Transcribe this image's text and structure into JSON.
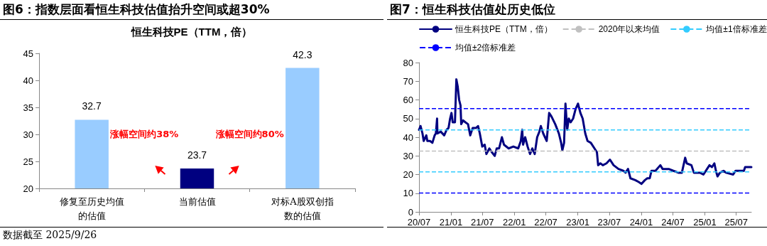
{
  "chart_data": [
    {
      "type": "bar",
      "title": "图6：指数层面看恒生科技估值抬升空间或超30%",
      "subtitle": "恒生科技PE（TTM，倍）",
      "categories": [
        "修复至历史均值的估值",
        "当前估值",
        "对标A股双创指数的估值"
      ],
      "values": [
        32.7,
        23.7,
        42.3
      ],
      "colors": [
        "#99ccff",
        "#000080",
        "#99ccff"
      ],
      "ylim": [
        20,
        45
      ],
      "yticks": [
        20,
        25,
        30,
        35,
        40,
        45
      ],
      "grid": false,
      "legend": false,
      "data_labels": true,
      "annotations": [
        "涨幅空间约38%",
        "涨幅空间约80%",
        "数据截至 2025/9/26"
      ]
    },
    {
      "type": "line",
      "title": "图7：恒生科技估值处历史低位",
      "series": [
        {
          "name": "恒生科技PE（TTM，倍）",
          "color": "#000080",
          "x": [
            "2020-07-01",
            "2020-07-10",
            "2020-07-21",
            "2020-07-28",
            "2020-08-12",
            "2020-08-18",
            "2020-09-02",
            "2020-09-16",
            "2020-09-29",
            "2020-10-06",
            "2020-10-13",
            "2020-10-15",
            "2020-11-03",
            "2020-11-23",
            "2020-12-07",
            "2020-12-18",
            "2020-12-27",
            "2021-01-04",
            "2021-01-11",
            "2021-01-24",
            "2021-02-01",
            "2021-02-09",
            "2021-02-17",
            "2021-02-25",
            "2021-03-01",
            "2021-03-12",
            "2021-03-25",
            "2021-04-09",
            "2021-04-22",
            "2021-05-06",
            "2021-05-26",
            "2021-06-06",
            "2021-06-16",
            "2021-06-30",
            "2021-07-14",
            "2021-07-24",
            "2021-08-10",
            "2021-08-24",
            "2021-09-10",
            "2021-09-21",
            "2021-10-05",
            "2021-10-21",
            "2021-11-02",
            "2021-11-29",
            "2021-12-26",
            "2022-01-23",
            "2022-02-07",
            "2022-02-15",
            "2022-02-20",
            "2022-03-04",
            "2022-03-18",
            "2022-04-01",
            "2022-04-14",
            "2022-04-28",
            "2022-05-12",
            "2022-05-25",
            "2022-06-02",
            "2022-06-16",
            "2022-07-06",
            "2022-07-20",
            "2022-08-03",
            "2022-08-24",
            "2022-09-14",
            "2022-09-27",
            "2022-10-04",
            "2022-10-14",
            "2022-10-22",
            "2022-11-01",
            "2022-11-10",
            "2022-11-21",
            "2022-12-05",
            "2022-12-19",
            "2023-01-02",
            "2023-01-16",
            "2023-01-29",
            "2023-02-13",
            "2023-02-26",
            "2023-03-17",
            "2023-04-07",
            "2023-04-21",
            "2023-04-28",
            "2023-05-11",
            "2023-05-25",
            "2023-06-15",
            "2023-07-05",
            "2023-07-26",
            "2023-08-23",
            "2023-09-20",
            "2023-10-03",
            "2023-10-17",
            "2023-10-31",
            "2023-11-28",
            "2023-12-18",
            "2024-01-02",
            "2024-01-22",
            "2024-02-05",
            "2024-02-19",
            "2024-02-29",
            "2024-03-23",
            "2024-04-20",
            "2024-05-03",
            "2024-06-07",
            "2024-07-04",
            "2024-08-02",
            "2024-08-22",
            "2024-09-10",
            "2024-09-19",
            "2024-10-16",
            "2024-10-30",
            "2024-12-04",
            "2024-12-24",
            "2025-01-14",
            "2025-01-28",
            "2025-02-11",
            "2025-02-25",
            "2025-03-06",
            "2025-03-15",
            "2025-03-29",
            "2025-04-19",
            "2025-05-03",
            "2025-06-13",
            "2025-06-27",
            "2025-07-24",
            "2025-08-14",
            "2025-08-21",
            "2025-09-26"
          ],
          "values": [
            44,
            46,
            42,
            38,
            41,
            38,
            38,
            37,
            41,
            42,
            50,
            42,
            43,
            41,
            44,
            45,
            50,
            53,
            48,
            48,
            71,
            67,
            60,
            57,
            47,
            49,
            48,
            47,
            41,
            45,
            45,
            46,
            42,
            35,
            36,
            31,
            34,
            32,
            30,
            34,
            34,
            40,
            36,
            34,
            35,
            34,
            38,
            44,
            36,
            40,
            35,
            31,
            34,
            31,
            40,
            43,
            46,
            42,
            38,
            53,
            51,
            47,
            42,
            37,
            33,
            37,
            58,
            44,
            50,
            48,
            50,
            55,
            58,
            53,
            50,
            42,
            38,
            37,
            34,
            32,
            25,
            26,
            25,
            26,
            28,
            25,
            23,
            22,
            21,
            23,
            18,
            17,
            16,
            15,
            17,
            18,
            18,
            22,
            22,
            25,
            23,
            23,
            22,
            21,
            21,
            29,
            26,
            25,
            21,
            21,
            20,
            23,
            25,
            24,
            26,
            22,
            19,
            21,
            22,
            21,
            20,
            22,
            22,
            22,
            24,
            24
          ]
        }
      ],
      "xlim": [
        "2020-07-01",
        "2025-09-26"
      ],
      "xticks": [
        {
          "value": "2020-07-01",
          "label": "20/07"
        },
        {
          "value": "2021-01-01",
          "label": "21/01"
        },
        {
          "value": "2021-07-01",
          "label": "21/07"
        },
        {
          "value": "2022-01-01",
          "label": "22/01"
        },
        {
          "value": "2022-07-01",
          "label": "22/07"
        },
        {
          "value": "2023-01-01",
          "label": "23/01"
        },
        {
          "value": "2023-07-01",
          "label": "23/07"
        },
        {
          "value": "2024-01-01",
          "label": "24/01"
        },
        {
          "value": "2024-07-01",
          "label": "24/07"
        },
        {
          "value": "2025-01-01",
          "label": "25/01"
        },
        {
          "value": "2025-07-01",
          "label": "25/07"
        }
      ],
      "ylim": [
        0,
        80
      ],
      "yticks": [
        0,
        10,
        20,
        30,
        40,
        50,
        60,
        70,
        80
      ],
      "grid": false,
      "legend": "top",
      "line_style": "solid",
      "marker": "none",
      "ref_lines": [
        {
          "axis": "y",
          "value": 32.6,
          "label": "2020年以来均值",
          "color": "#c0c0c0",
          "line_style": "dashed"
        },
        {
          "axis": "y",
          "value": 43.9,
          "label": "均值±1倍标准差",
          "color": "#33ccff",
          "line_style": "dashed"
        },
        {
          "axis": "y",
          "value": 21.4,
          "label": null,
          "color": "#33ccff",
          "line_style": "dashed"
        },
        {
          "axis": "y",
          "value": 55.3,
          "label": "均值±2倍标准差",
          "color": "#0000ff",
          "line_style": "dashed"
        },
        {
          "axis": "y",
          "value": 10.1,
          "label": null,
          "color": "#0000ff",
          "line_style": "dashed"
        }
      ]
    }
  ]
}
